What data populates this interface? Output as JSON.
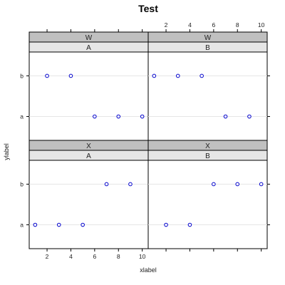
{
  "chart_data": {
    "type": "scatter",
    "title": "Test",
    "xlabel": "xlabel",
    "ylabel": "ylabel",
    "xlim": [
      0.5,
      10.5
    ],
    "x_ticks": [
      "2",
      "4",
      "6",
      "8",
      "10"
    ],
    "y_categories": [
      "a",
      "b"
    ],
    "grid": "horizontal reference lines",
    "point_color": "#0000cc",
    "strip_outer_color": "#c0c0c0",
    "strip_inner_color": "#e6e6e6",
    "panels": [
      {
        "outer": "W",
        "inner": "A",
        "points": [
          {
            "x": 2,
            "y": "b"
          },
          {
            "x": 4,
            "y": "b"
          },
          {
            "x": 6,
            "y": "a"
          },
          {
            "x": 8,
            "y": "a"
          },
          {
            "x": 10,
            "y": "a"
          }
        ]
      },
      {
        "outer": "W",
        "inner": "B",
        "points": [
          {
            "x": 1,
            "y": "b"
          },
          {
            "x": 3,
            "y": "b"
          },
          {
            "x": 5,
            "y": "b"
          },
          {
            "x": 7,
            "y": "a"
          },
          {
            "x": 9,
            "y": "a"
          }
        ]
      },
      {
        "outer": "X",
        "inner": "A",
        "points": [
          {
            "x": 7,
            "y": "b"
          },
          {
            "x": 9,
            "y": "b"
          },
          {
            "x": 1,
            "y": "a"
          },
          {
            "x": 3,
            "y": "a"
          },
          {
            "x": 5,
            "y": "a"
          }
        ]
      },
      {
        "outer": "X",
        "inner": "B",
        "points": [
          {
            "x": 6,
            "y": "b"
          },
          {
            "x": 8,
            "y": "b"
          },
          {
            "x": 10,
            "y": "b"
          },
          {
            "x": 2,
            "y": "a"
          },
          {
            "x": 4,
            "y": "a"
          }
        ]
      }
    ]
  }
}
